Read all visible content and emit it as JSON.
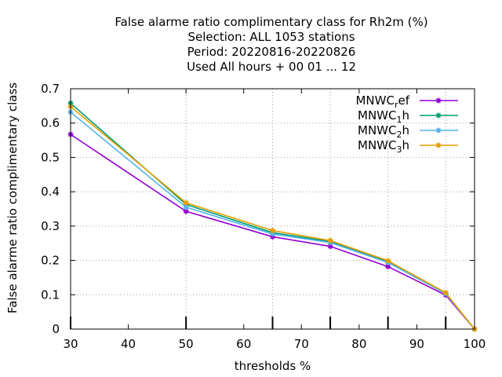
{
  "chart_data": {
    "type": "line",
    "title_lines": [
      "False alarme ratio complimentary class  for Rh2m (%)",
      "Selection: ALL   1053 stations",
      "Period: 20220816-20220826",
      "Used  All hours  + 00 01 ... 12"
    ],
    "xlabel": "thresholds %",
    "ylabel": "False alarme ratio complimentary class",
    "xlim": [
      30,
      100
    ],
    "ylim": [
      0,
      0.7
    ],
    "xticks": [
      30,
      40,
      50,
      60,
      70,
      80,
      90,
      100
    ],
    "xtick_labels": [
      "30",
      "40",
      "50",
      "60",
      "70",
      "80",
      "90",
      "100"
    ],
    "yticks": [
      0,
      0.1,
      0.2,
      0.3,
      0.4,
      0.5,
      0.6,
      0.7
    ],
    "ytick_labels": [
      "0",
      "0.1",
      "0.2",
      "0.3",
      "0.4",
      "0.5",
      "0.6",
      "0.7"
    ],
    "vertical_grid_x": [
      50,
      65,
      75,
      85,
      95
    ],
    "grid": true,
    "legend_position": "top-right",
    "x": [
      30,
      50,
      65,
      75,
      85,
      95,
      100
    ],
    "series": [
      {
        "name_main": "MNWC",
        "name_sub": "r",
        "name_rest": "ef",
        "color": "#9400d3",
        "values": [
          0.567,
          0.343,
          0.269,
          0.241,
          0.182,
          0.099,
          0.0
        ]
      },
      {
        "name_main": "MNWC",
        "name_sub": "1",
        "name_rest": "h",
        "color": "#009e73",
        "values": [
          0.658,
          0.363,
          0.281,
          0.255,
          0.196,
          0.104,
          0.0
        ]
      },
      {
        "name_main": "MNWC",
        "name_sub": "2",
        "name_rest": "h",
        "color": "#56b4e9",
        "values": [
          0.632,
          0.355,
          0.277,
          0.252,
          0.194,
          0.103,
          0.0
        ]
      },
      {
        "name_main": "MNWC",
        "name_sub": "3",
        "name_rest": "h",
        "color": "#e69f00",
        "values": [
          0.648,
          0.368,
          0.287,
          0.258,
          0.199,
          0.106,
          0.0
        ]
      }
    ]
  }
}
